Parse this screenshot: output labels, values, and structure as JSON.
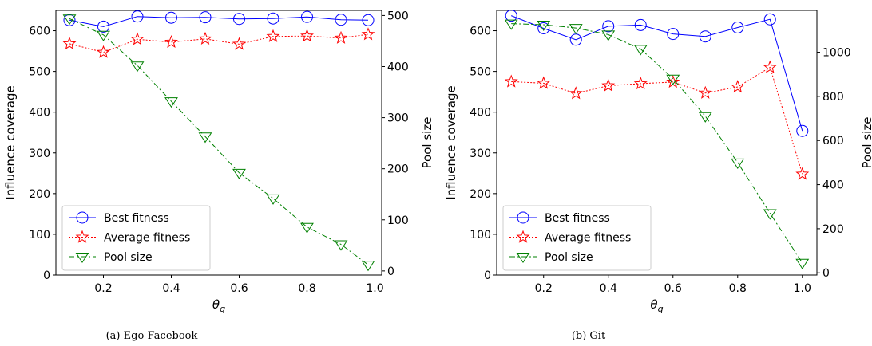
{
  "captions": [
    "(a)  Ego-Facebook",
    "(b)  Git"
  ],
  "chart_data": [
    {
      "type": "line",
      "x": [
        0.1,
        0.2,
        0.3,
        0.4,
        0.5,
        0.6,
        0.7,
        0.8,
        0.9,
        0.98
      ],
      "xlabel": "θ",
      "xlabel_sub": "q",
      "ylabel": "Influence coverage",
      "y2label": "Pool size",
      "xlim": [
        0.06,
        1.02
      ],
      "ylim": [
        0,
        650
      ],
      "y2lim": [
        -8,
        510
      ],
      "xticks": [
        "0.2",
        "0.4",
        "0.6",
        "0.8",
        "1.0"
      ],
      "xtick_values": [
        0.2,
        0.4,
        0.6,
        0.8,
        1.0
      ],
      "yticks": [
        0,
        100,
        200,
        300,
        400,
        500,
        600
      ],
      "y2ticks": [
        0,
        100,
        200,
        300,
        400,
        500
      ],
      "legend_position": "lower-left",
      "series": [
        {
          "name": "Best fitness",
          "axis": "left",
          "color": "#0000ff",
          "marker": "circle",
          "dash": "",
          "values": [
            626,
            610,
            635,
            632,
            633,
            629,
            630,
            634,
            627,
            626
          ]
        },
        {
          "name": "Average fitness",
          "axis": "left",
          "color": "#ff0000",
          "marker": "star",
          "dash": "2,2",
          "values": [
            568,
            547,
            579,
            572,
            580,
            567,
            586,
            587,
            582,
            591
          ]
        },
        {
          "name": "Pool size",
          "axis": "right",
          "color": "#008000",
          "marker": "triangle-down",
          "dash": "7,3,2,3",
          "values": [
            494,
            462,
            402,
            332,
            263,
            192,
            142,
            86,
            52,
            12
          ]
        }
      ]
    },
    {
      "type": "line",
      "x": [
        0.1,
        0.2,
        0.3,
        0.4,
        0.5,
        0.6,
        0.7,
        0.8,
        0.9,
        1.0
      ],
      "xlabel": "θ",
      "xlabel_sub": "q",
      "ylabel": "Influence coverage",
      "y2label": "Pool size",
      "xlim": [
        0.055,
        1.045
      ],
      "ylim": [
        0,
        650
      ],
      "y2lim": [
        -10,
        1190
      ],
      "xticks": [
        "0.2",
        "0.4",
        "0.6",
        "0.8",
        "1.0"
      ],
      "xtick_values": [
        0.2,
        0.4,
        0.6,
        0.8,
        1.0
      ],
      "yticks": [
        0,
        100,
        200,
        300,
        400,
        500,
        600
      ],
      "y2ticks": [
        0,
        200,
        400,
        600,
        800,
        1000
      ],
      "legend_position": "lower-left",
      "series": [
        {
          "name": "Best fitness",
          "axis": "left",
          "color": "#0000ff",
          "marker": "circle",
          "dash": "",
          "values": [
            637,
            606,
            578,
            611,
            614,
            592,
            586,
            608,
            628,
            354
          ]
        },
        {
          "name": "Average fitness",
          "axis": "left",
          "color": "#ff0000",
          "marker": "star",
          "dash": "2,2",
          "values": [
            475,
            471,
            446,
            465,
            470,
            474,
            447,
            462,
            510,
            248
          ]
        },
        {
          "name": "Pool size",
          "axis": "right",
          "color": "#008000",
          "marker": "triangle-down",
          "dash": "7,3,2,3",
          "values": [
            1130,
            1125,
            1110,
            1080,
            1015,
            880,
            710,
            500,
            270,
            45
          ]
        }
      ]
    }
  ]
}
